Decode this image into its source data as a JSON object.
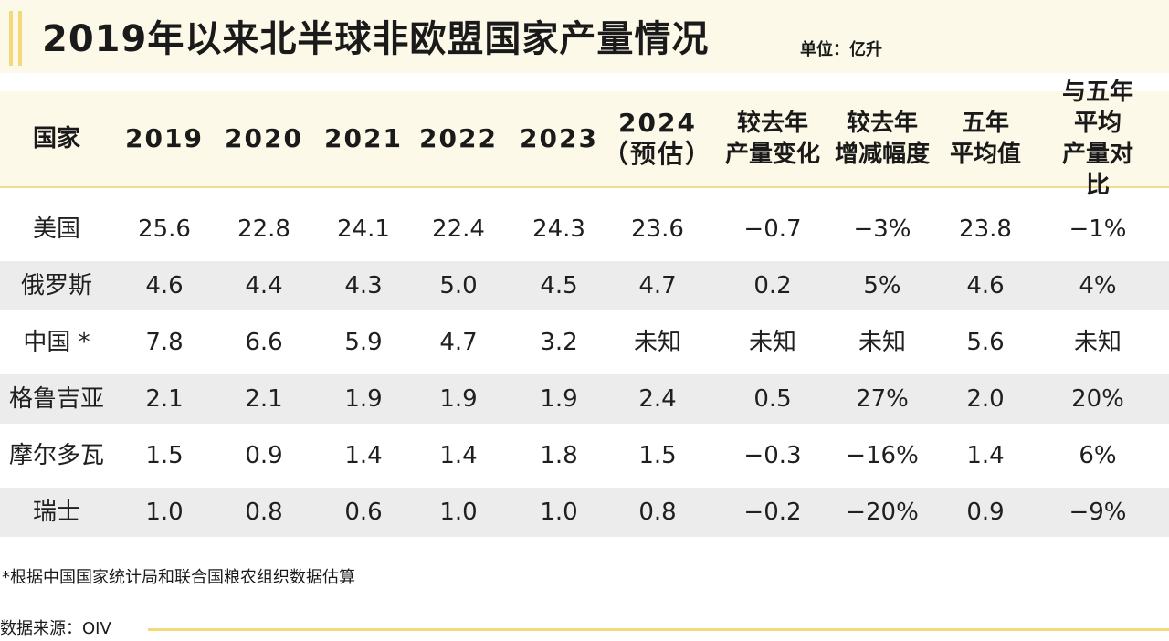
{
  "title": "2019年以来北半球非欧盟国家产量情况",
  "unit": "单位：亿升",
  "table": {
    "headers": [
      "国家",
      "2019",
      "2020",
      "2021",
      "2022",
      "2023",
      "2024\n（预估）",
      "较去年\n产量变化",
      "较去年\n增减幅度",
      "五年\n平均值",
      "与五年平均\n产量对比"
    ],
    "rows": [
      [
        "美国",
        "25.6",
        "22.8",
        "24.1",
        "22.4",
        "24.3",
        "23.6",
        "−0.7",
        "−3%",
        "23.8",
        "−1%"
      ],
      [
        "俄罗斯",
        "4.6",
        "4.4",
        "4.3",
        "5.0",
        "4.5",
        "4.7",
        "0.2",
        "5%",
        "4.6",
        "4%"
      ],
      [
        "中国 *",
        "7.8",
        "6.6",
        "5.9",
        "4.7",
        "3.2",
        "未知",
        "未知",
        "未知",
        "5.6",
        "未知"
      ],
      [
        "格鲁吉亚",
        "2.1",
        "2.1",
        "1.9",
        "1.9",
        "1.9",
        "2.4",
        "0.5",
        "27%",
        "2.0",
        "20%"
      ],
      [
        "摩尔多瓦",
        "1.5",
        "0.9",
        "1.4",
        "1.4",
        "1.8",
        "1.5",
        "−0.3",
        "−16%",
        "1.4",
        "6%"
      ],
      [
        "瑞士",
        "1.0",
        "0.8",
        "0.6",
        "1.0",
        "1.0",
        "0.8",
        "−0.2",
        "−20%",
        "0.9",
        "−9%"
      ]
    ]
  },
  "footnote": "*根据中国国家统计局和联合国粮农组织数据估算",
  "source": "数据来源：OIV",
  "colors": {
    "accent": "#f3d97a",
    "header_bg": "#fdf9e8",
    "stripe": "#ececec"
  }
}
